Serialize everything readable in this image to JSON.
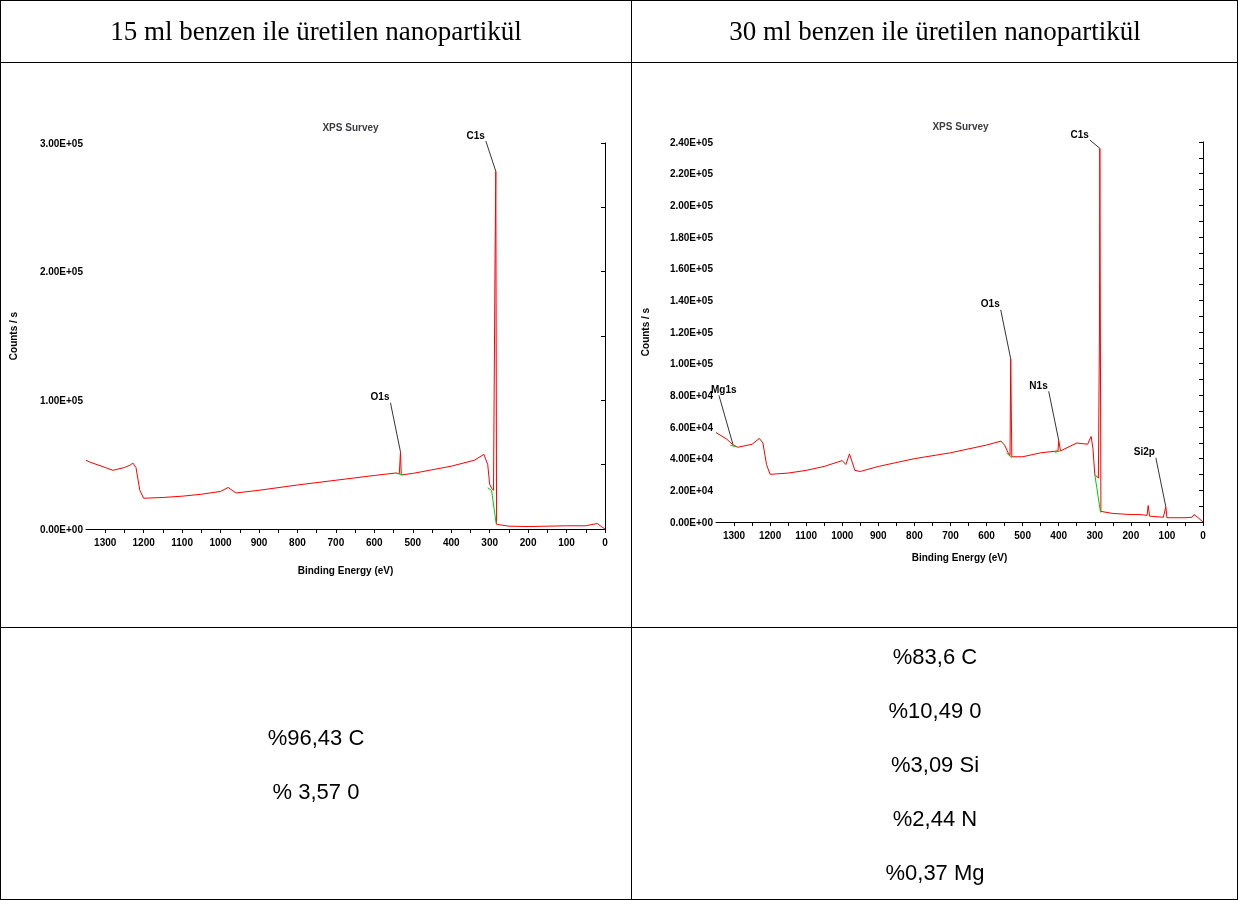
{
  "chart_data": [
    {
      "type": "line",
      "title": "15 ml benzen ile üretilen nanopartikül",
      "subtitle": "XPS Survey",
      "xlabel": "Binding Energy (eV)",
      "ylabel": "Counts / s",
      "marker": "none",
      "grid": false,
      "xlim": [
        1350,
        0
      ],
      "xticks": [
        1300,
        {
          "value": 1250,
          "label": null
        },
        1200,
        {
          "value": 1150,
          "label": null
        },
        1100,
        {
          "value": 1050,
          "label": null
        },
        1000,
        {
          "value": 950,
          "label": null
        },
        900,
        {
          "value": 850,
          "label": null
        },
        800,
        {
          "value": 750,
          "label": null
        },
        700,
        {
          "value": 650,
          "label": null
        },
        600,
        {
          "value": 550,
          "label": null
        },
        500,
        {
          "value": 450,
          "label": null
        },
        400,
        {
          "value": 350,
          "label": null
        },
        300,
        {
          "value": 250,
          "label": null
        },
        200,
        {
          "value": 150,
          "label": null
        },
        100,
        {
          "value": 50,
          "label": null
        },
        0
      ],
      "ylim": [
        0,
        300000
      ],
      "yticks": [
        {
          "value": 0,
          "label": "0.00E+00"
        },
        {
          "value": 50000,
          "label": null
        },
        {
          "value": 100000,
          "label": "1.00E+05"
        },
        {
          "value": 150000,
          "label": null
        },
        {
          "value": 200000,
          "label": "2.00E+05"
        },
        {
          "value": 250000,
          "label": null
        },
        {
          "value": 300000,
          "label": "3.00E+05"
        }
      ],
      "series": [
        {
          "color": "#ff0000",
          "x": [
            1350,
            1340,
            1300,
            1280,
            1250,
            1235,
            1228,
            1220,
            1210,
            1200,
            1150,
            1100,
            1050,
            1000,
            980,
            970,
            960,
            900,
            800,
            700,
            600,
            545,
            535,
            532,
            530,
            500,
            400,
            340,
            320,
            315,
            305,
            300,
            295,
            290,
            286,
            284,
            282,
            270,
            250,
            200,
            100,
            50,
            20,
            10,
            0
          ],
          "values": [
            53400,
            52000,
            47800,
            45600,
            47800,
            49700,
            51200,
            47800,
            30100,
            23900,
            24500,
            25500,
            27000,
            29200,
            32300,
            30100,
            28000,
            30100,
            34200,
            37900,
            41600,
            43500,
            43000,
            60000,
            42000,
            43200,
            48800,
            53400,
            57100,
            58000,
            50000,
            34800,
            31700,
            30000,
            210000,
            278000,
            3700,
            3100,
            2200,
            1900,
            2500,
            2500,
            4300,
            2000,
            0
          ]
        },
        {
          "color": "#00cc00",
          "x": [
            545,
            525,
            400,
            305,
            295,
            283
          ],
          "values": [
            43500,
            42000,
            null,
            32000,
            30000,
            4000
          ]
        }
      ],
      "annotations": [
        {
          "text": "C1s",
          "x": 284,
          "y": 278000
        },
        {
          "text": "O1s",
          "x": 532,
          "y": 60000
        },
        "%96,43 C",
        "% 3,57 0"
      ]
    },
    {
      "type": "line",
      "title": "30 ml benzen ile üretilen nanopartikül",
      "subtitle": "XPS Survey",
      "xlabel": "Binding Energy (eV)",
      "ylabel": "Counts / s",
      "marker": "none",
      "grid": false,
      "xlim": [
        1350,
        0
      ],
      "xticks": [
        1300,
        {
          "value": 1250,
          "label": null
        },
        1200,
        {
          "value": 1150,
          "label": null
        },
        1100,
        {
          "value": 1050,
          "label": null
        },
        1000,
        {
          "value": 950,
          "label": null
        },
        900,
        {
          "value": 850,
          "label": null
        },
        800,
        {
          "value": 750,
          "label": null
        },
        700,
        {
          "value": 650,
          "label": null
        },
        600,
        {
          "value": 550,
          "label": null
        },
        500,
        {
          "value": 450,
          "label": null
        },
        400,
        {
          "value": 350,
          "label": null
        },
        300,
        {
          "value": 250,
          "label": null
        },
        200,
        {
          "value": 150,
          "label": null
        },
        100,
        {
          "value": 50,
          "label": null
        },
        0
      ],
      "ylim": [
        0,
        240000
      ],
      "yticks": [
        {
          "value": 0,
          "label": "0.00E+00"
        },
        {
          "value": 10000,
          "label": null
        },
        {
          "value": 20000,
          "label": "2.00E+04"
        },
        {
          "value": 30000,
          "label": null
        },
        {
          "value": 40000,
          "label": "4.00E+04"
        },
        {
          "value": 50000,
          "label": null
        },
        {
          "value": 60000,
          "label": "6.00E+04"
        },
        {
          "value": 70000,
          "label": null
        },
        {
          "value": 80000,
          "label": "8.00E+04"
        },
        {
          "value": 90000,
          "label": null
        },
        {
          "value": 100000,
          "label": "1.00E+05"
        },
        {
          "value": 110000,
          "label": null
        },
        {
          "value": 120000,
          "label": "1.20E+05"
        },
        {
          "value": 130000,
          "label": null
        },
        {
          "value": 140000,
          "label": "1.40E+05"
        },
        {
          "value": 150000,
          "label": null
        },
        {
          "value": 160000,
          "label": "1.60E+05"
        },
        {
          "value": 170000,
          "label": null
        },
        {
          "value": 180000,
          "label": "1.80E+05"
        },
        {
          "value": 190000,
          "label": null
        },
        {
          "value": 200000,
          "label": "2.00E+05"
        },
        {
          "value": 210000,
          "label": null
        },
        {
          "value": 220000,
          "label": "2.20E+05"
        },
        {
          "value": 230000,
          "label": null
        },
        {
          "value": 240000,
          "label": "2.40E+05"
        }
      ],
      "series": [
        {
          "color": "#ff0000",
          "x": [
            1350,
            1320,
            1305,
            1290,
            1250,
            1230,
            1220,
            1210,
            1200,
            1150,
            1100,
            1050,
            1000,
            990,
            980,
            965,
            950,
            900,
            800,
            700,
            600,
            560,
            550,
            540,
            535,
            533,
            530,
            500,
            450,
            402,
            400,
            395,
            350,
            320,
            310,
            305,
            300,
            290,
            287,
            286,
            283,
            250,
            200,
            175,
            155,
            152,
            148,
            110,
            103,
            100,
            50,
            30,
            25,
            15,
            0
          ],
          "values": [
            56500,
            52300,
            49100,
            47200,
            49100,
            52800,
            49900,
            36300,
            30100,
            30900,
            32600,
            35100,
            38800,
            36300,
            43000,
            32600,
            31900,
            35100,
            40000,
            43700,
            48600,
            51100,
            48600,
            43700,
            42000,
            103000,
            41200,
            41200,
            43700,
            44900,
            51600,
            44900,
            49900,
            49100,
            54000,
            46200,
            30100,
            27700,
            120000,
            236000,
            6700,
            5400,
            4700,
            4700,
            4200,
            10400,
            3700,
            3000,
            9600,
            2700,
            2700,
            3000,
            4700,
            3000,
            0
          ]
        },
        {
          "color": "#00cc00",
          "x": [
            1310,
            1295,
            1200,
            545,
            530,
            500,
            410,
            395,
            350,
            300,
            284
          ],
          "values": [
            48500,
            47500,
            null,
            43700,
            40500,
            null,
            44000,
            45000,
            null,
            30100,
            6000
          ]
        }
      ],
      "annotations": [
        {
          "text": "C1s",
          "x": 286,
          "y": 236000
        },
        {
          "text": "O1s",
          "x": 533,
          "y": 103000
        },
        {
          "text": "N1s",
          "x": 400,
          "y": 51600
        },
        {
          "text": "Mg1s",
          "x": 1303,
          "y": 49000
        },
        {
          "text": "Si2p",
          "x": 103,
          "y": 9600
        },
        "%83,6 C",
        "%10,49 0",
        "%3,09 Si",
        "%2,44 N",
        "%0,37 Mg"
      ]
    }
  ]
}
